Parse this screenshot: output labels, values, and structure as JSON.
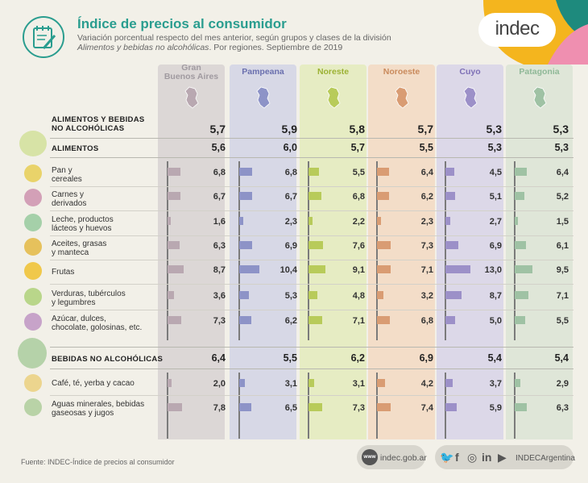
{
  "header": {
    "title": "Índice de precios al consumidor",
    "subtitle_line1": "Variación porcentual respecto del mes anterior, según grupos y clases de la división",
    "subtitle_italic": "Alimentos y bebidas no alcohólicas",
    "subtitle_rest": ". Por regiones. Septiembre de 2019"
  },
  "logo": "indec",
  "colors": {
    "gba": "#dcd7d6",
    "pampeana": "#d7d8e6",
    "noreste": "#e6ecc3",
    "noroeste": "#f3ddc8",
    "cuyo": "#dcd8e8",
    "patagonia": "#dfe6d8",
    "gba_bar": "#b9a8b1",
    "pampeana_bar": "#8d93c7",
    "noreste_bar": "#b8cb5a",
    "noroeste_bar": "#d99c73",
    "cuyo_bar": "#9c90c8",
    "patagonia_bar": "#9fc2a4",
    "accent": "#2a9d8f"
  },
  "chart_data": {
    "type": "bar",
    "regions": [
      "Gran Buenos Aires",
      "Pampeana",
      "Noreste",
      "Noroeste",
      "Cuyo",
      "Patagonia"
    ],
    "region_labels": [
      [
        "Gran",
        "Buenos Aires"
      ],
      [
        "Pampeana"
      ],
      [
        "Noreste"
      ],
      [
        "Noroeste"
      ],
      [
        "Cuyo"
      ],
      [
        "Patagonia"
      ]
    ],
    "total": {
      "label": [
        "ALIMENTOS Y BEBIDAS",
        "NO ALCOHÓLICAS"
      ],
      "values": [
        "5,7",
        "5,9",
        "5,8",
        "5,7",
        "5,3",
        "5,3"
      ]
    },
    "alimentos": {
      "label": "ALIMENTOS",
      "values": [
        "5,6",
        "6,0",
        "5,7",
        "5,5",
        "5,3",
        "5,3"
      ]
    },
    "alimentos_rows": [
      {
        "label": [
          "Pan y",
          "cereales"
        ],
        "values": [
          6.8,
          6.8,
          5.5,
          6.4,
          4.5,
          6.4
        ],
        "labels": [
          "6,8",
          "6,8",
          "5,5",
          "6,4",
          "4,5",
          "6,4"
        ]
      },
      {
        "label": [
          "Carnes y",
          "derivados"
        ],
        "values": [
          6.7,
          6.7,
          6.8,
          6.2,
          5.1,
          5.2
        ],
        "labels": [
          "6,7",
          "6,7",
          "6,8",
          "6,2",
          "5,1",
          "5,2"
        ]
      },
      {
        "label": [
          "Leche, productos",
          "lácteos y huevos"
        ],
        "values": [
          1.6,
          2.3,
          2.2,
          2.3,
          2.7,
          1.5
        ],
        "labels": [
          "1,6",
          "2,3",
          "2,2",
          "2,3",
          "2,7",
          "1,5"
        ]
      },
      {
        "label": [
          "Aceites, grasas",
          "y manteca"
        ],
        "values": [
          6.3,
          6.9,
          7.6,
          7.3,
          6.9,
          6.1
        ],
        "labels": [
          "6,3",
          "6,9",
          "7,6",
          "7,3",
          "6,9",
          "6,1"
        ]
      },
      {
        "label": [
          "Frutas"
        ],
        "values": [
          8.7,
          10.4,
          9.1,
          7.1,
          13.0,
          9.5
        ],
        "labels": [
          "8,7",
          "10,4",
          "9,1",
          "7,1",
          "13,0",
          "9,5"
        ]
      },
      {
        "label": [
          "Verduras, tubérculos",
          "y legumbres"
        ],
        "values": [
          3.6,
          5.3,
          4.8,
          3.2,
          8.7,
          7.1
        ],
        "labels": [
          "3,6",
          "5,3",
          "4,8",
          "3,2",
          "8,7",
          "7,1"
        ]
      },
      {
        "label": [
          "Azúcar, dulces,",
          "chocolate, golosinas, etc."
        ],
        "values": [
          7.3,
          6.2,
          7.1,
          6.8,
          5.0,
          5.5
        ],
        "labels": [
          "7,3",
          "6,2",
          "7,1",
          "6,8",
          "5,0",
          "5,5"
        ]
      }
    ],
    "bebidas": {
      "label": "BEBIDAS NO ALCOHÓLICAS",
      "values": [
        "6,4",
        "5,5",
        "6,2",
        "6,9",
        "5,4",
        "5,4"
      ]
    },
    "bebidas_rows": [
      {
        "label": [
          "Café, té, yerba y cacao"
        ],
        "values": [
          2.0,
          3.1,
          3.1,
          4.2,
          3.7,
          2.9
        ],
        "labels": [
          "2,0",
          "3,1",
          "3,1",
          "4,2",
          "3,7",
          "2,9"
        ]
      },
      {
        "label": [
          "Aguas minerales, bebidas",
          "gaseosas y jugos"
        ],
        "values": [
          7.8,
          6.5,
          7.3,
          7.4,
          5.9,
          6.3
        ],
        "labels": [
          "7,8",
          "6,5",
          "7,3",
          "7,4",
          "5,9",
          "6,3"
        ]
      }
    ]
  },
  "footer": {
    "source": "Fuente: INDEC-Índice de precios al consumidor",
    "web_icon": "www",
    "web": "indec.gob.ar",
    "social_icons": [
      "twitter-icon",
      "facebook-icon",
      "instagram-icon",
      "linkedin-icon",
      "youtube-icon"
    ],
    "social_glyphs": [
      "🐦",
      "f",
      "◎",
      "in",
      "▶"
    ],
    "social": "INDECArgentina"
  }
}
